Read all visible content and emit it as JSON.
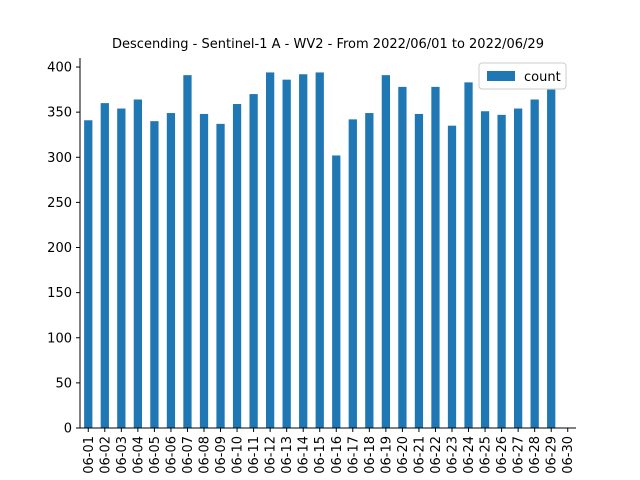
{
  "chart_data": {
    "type": "bar",
    "title": "Descending - Sentinel-1 A - WV2 - From 2022/06/01 to 2022/06/29",
    "xlabel": "",
    "ylabel": "",
    "ylim": [
      0,
      410
    ],
    "yticks": [
      0,
      50,
      100,
      150,
      200,
      250,
      300,
      350,
      400
    ],
    "categories": [
      "06-01",
      "06-02",
      "06-03",
      "06-04",
      "06-05",
      "06-06",
      "06-07",
      "06-08",
      "06-09",
      "06-10",
      "06-11",
      "06-12",
      "06-13",
      "06-14",
      "06-15",
      "06-16",
      "06-17",
      "06-18",
      "06-19",
      "06-20",
      "06-21",
      "06-22",
      "06-23",
      "06-24",
      "06-25",
      "06-26",
      "06-27",
      "06-28",
      "06-29",
      "06-30"
    ],
    "series": [
      {
        "name": "count",
        "color": "#1f77b4",
        "values": [
          341,
          360,
          354,
          364,
          340,
          349,
          391,
          348,
          337,
          359,
          370,
          394,
          386,
          392,
          394,
          302,
          342,
          349,
          391,
          378,
          348,
          378,
          335,
          383,
          351,
          347,
          354,
          364,
          375,
          0
        ]
      }
    ],
    "legend": {
      "position": "top-right",
      "entries": [
        "count"
      ]
    },
    "grid": false
  }
}
